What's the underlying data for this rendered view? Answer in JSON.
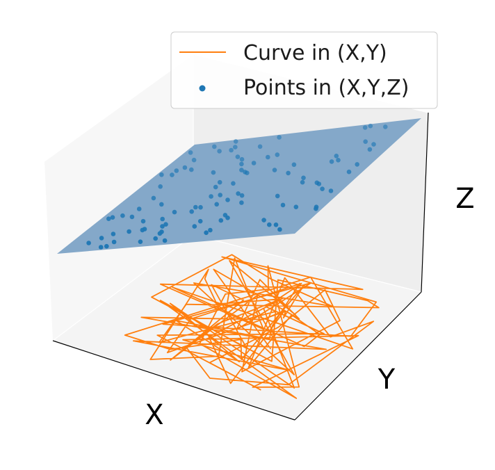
{
  "chart_data": {
    "type": "3d-scatter-surface",
    "axes": {
      "xlabel": "X",
      "ylabel": "Y",
      "zlabel": "Z"
    },
    "ticks_visible": false,
    "grid": false,
    "legend": {
      "placement": "top-right",
      "entries": [
        {
          "label": "Curve in (X,Y)",
          "marker": "line"
        },
        {
          "label": "Points in (X,Y,Z)",
          "marker": "dot"
        }
      ]
    },
    "plane": {
      "color": "#7da3c6",
      "opacity": 0.95
    },
    "curve": {
      "color": "#ff7f0e",
      "plane_z": 0,
      "segments": 100
    },
    "points": {
      "color": "#1f77b4",
      "count": 100
    },
    "colors": {
      "curve": "#ff7f0e",
      "points": "#1f77b4",
      "plane": "#7da3c6"
    }
  }
}
